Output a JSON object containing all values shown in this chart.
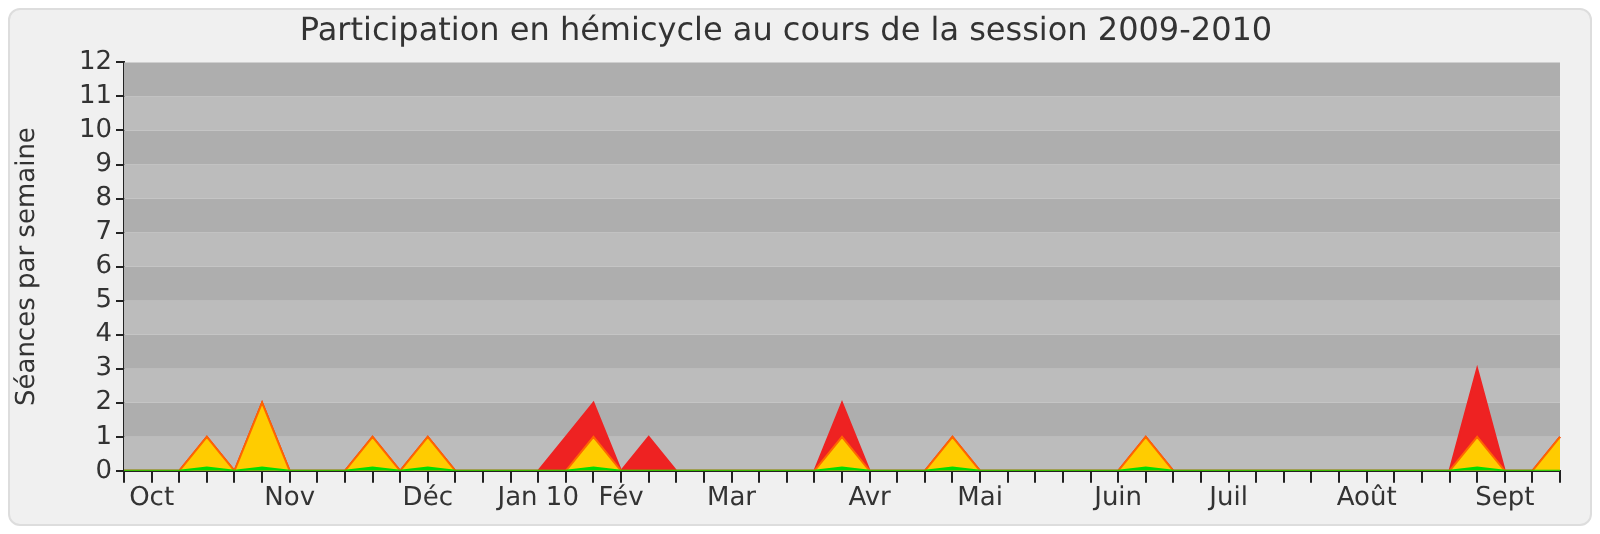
{
  "chart_data": {
    "type": "area",
    "title": "Participation en hémicycle au cours de la session 2009-2010",
    "ylabel": "Séances par semaine",
    "categories": [
      null,
      "Oct",
      null,
      null,
      null,
      null,
      "Nov",
      null,
      null,
      null,
      null,
      "Déc",
      null,
      null,
      null,
      "Jan 10",
      null,
      null,
      "Fév",
      null,
      null,
      null,
      "Mar",
      null,
      null,
      null,
      null,
      "Avr",
      null,
      null,
      null,
      "Mai",
      null,
      null,
      null,
      null,
      "Juin",
      null,
      null,
      null,
      "Juil",
      null,
      null,
      null,
      null,
      "Août",
      null,
      null,
      null,
      null,
      "Sept",
      null,
      null
    ],
    "series": [
      {
        "color": "#ee2222",
        "values": [
          0,
          0,
          0,
          1,
          0,
          2,
          0,
          0,
          0,
          1,
          0,
          1,
          0,
          0,
          0,
          0,
          1,
          2,
          0,
          1,
          0,
          0,
          0,
          0,
          0,
          0,
          2,
          0,
          0,
          0,
          1,
          0,
          0,
          0,
          0,
          0,
          0,
          1,
          0,
          0,
          0,
          0,
          0,
          0,
          0,
          0,
          0,
          0,
          0,
          3,
          0,
          0,
          1
        ]
      },
      {
        "color": "#ffcc00",
        "values": [
          0,
          0,
          0,
          1,
          0,
          2,
          0,
          0,
          0,
          1,
          0,
          1,
          0,
          0,
          0,
          0,
          0,
          1,
          0,
          0,
          0,
          0,
          0,
          0,
          0,
          0,
          1,
          0,
          0,
          0,
          1,
          0,
          0,
          0,
          0,
          0,
          0,
          1,
          0,
          0,
          0,
          0,
          0,
          0,
          0,
          0,
          0,
          0,
          0,
          1,
          0,
          0,
          1
        ]
      },
      {
        "color": "#00dd00",
        "values": [
          0,
          0,
          0,
          0.1,
          0,
          0.1,
          0,
          0,
          0,
          0.1,
          0,
          0.1,
          0,
          0,
          0,
          0,
          0,
          0.1,
          0,
          0,
          0,
          0,
          0,
          0,
          0,
          0,
          0.1,
          0,
          0,
          0,
          0.1,
          0,
          0,
          0,
          0,
          0,
          0,
          0.1,
          0,
          0,
          0,
          0,
          0,
          0,
          0,
          0,
          0,
          0,
          0,
          0.1,
          0,
          0,
          0
        ]
      }
    ],
    "ylim": [
      0,
      12
    ],
    "yticks": [
      0,
      1,
      2,
      3,
      4,
      5,
      6,
      7,
      8,
      9,
      10,
      11,
      12
    ],
    "legend": false
  }
}
